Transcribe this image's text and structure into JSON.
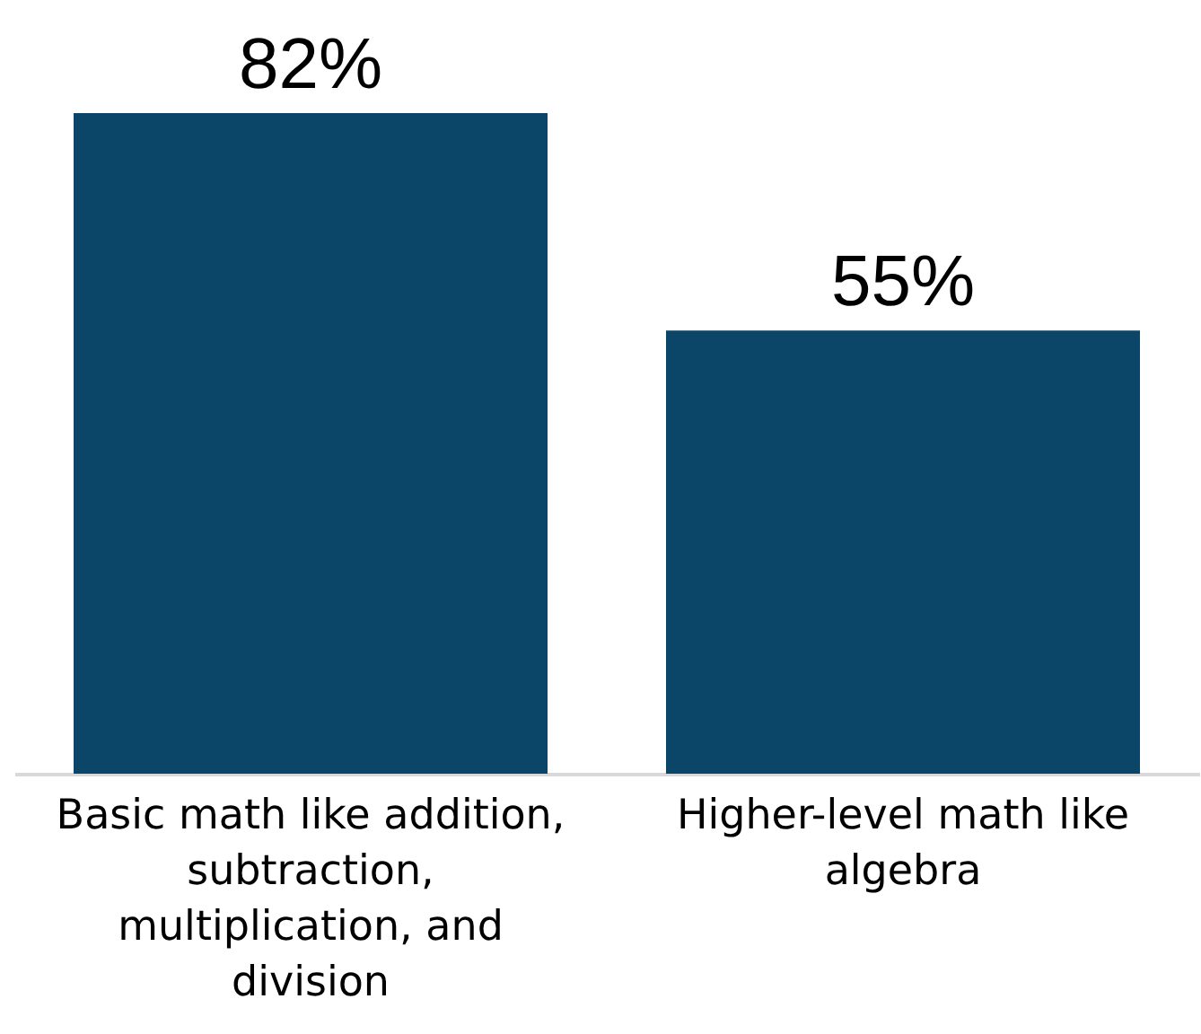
{
  "chart_data": {
    "type": "bar",
    "categories": [
      "Basic math like addition, subtraction, multiplication, and division",
      "Higher-level math like algebra"
    ],
    "values": [
      82,
      55
    ],
    "color": "#0b4669",
    "value_labels": [
      "82%",
      "55%"
    ]
  }
}
